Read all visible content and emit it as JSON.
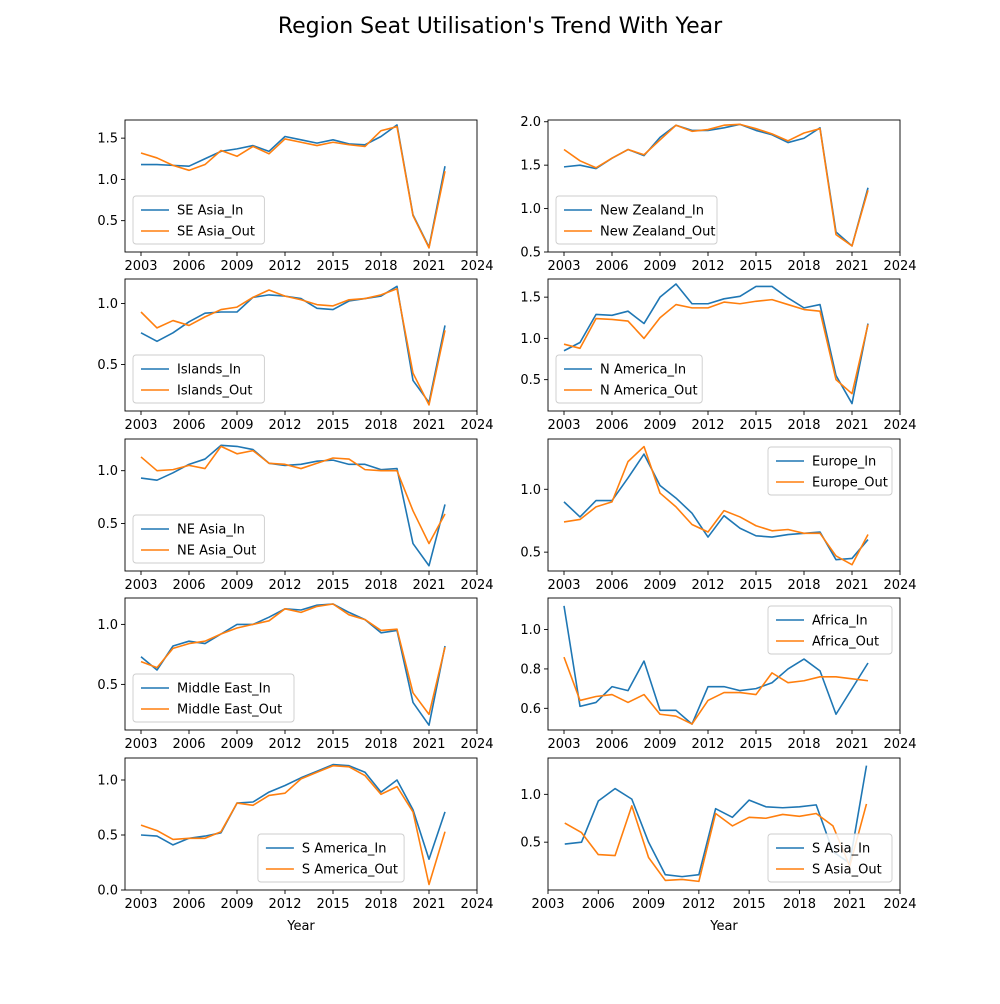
{
  "figure": {
    "title": "Region Seat Utilisation's Trend With Year",
    "colors": {
      "in": "#1f77b4",
      "out": "#ff7f0e"
    }
  },
  "chart_data": [
    {
      "type": "line",
      "xlim": [
        2002,
        2024
      ],
      "xticks": [
        2003,
        2006,
        2009,
        2012,
        2015,
        2018,
        2021,
        2024
      ],
      "ylim": [
        0.12,
        1.72
      ],
      "yticks": [
        0.5,
        1.0,
        1.5
      ],
      "legend": "lower-left",
      "xlabel": "",
      "x": [
        2003,
        2004,
        2005,
        2006,
        2007,
        2008,
        2009,
        2010,
        2011,
        2012,
        2013,
        2014,
        2015,
        2016,
        2017,
        2018,
        2019,
        2020,
        2021,
        2022
      ],
      "series": [
        {
          "name": "SE Asia_In",
          "values": [
            1.18,
            1.18,
            1.17,
            1.16,
            1.25,
            1.34,
            1.37,
            1.41,
            1.34,
            1.52,
            1.48,
            1.44,
            1.48,
            1.43,
            1.42,
            1.52,
            1.66,
            0.57,
            0.18,
            1.16
          ]
        },
        {
          "name": "SE Asia_Out",
          "values": [
            1.32,
            1.26,
            1.17,
            1.11,
            1.18,
            1.35,
            1.28,
            1.4,
            1.31,
            1.49,
            1.45,
            1.41,
            1.45,
            1.42,
            1.4,
            1.59,
            1.64,
            0.56,
            0.17,
            1.1
          ]
        }
      ]
    },
    {
      "type": "line",
      "xlim": [
        2002,
        2024
      ],
      "xticks": [
        2003,
        2006,
        2009,
        2012,
        2015,
        2018,
        2021,
        2024
      ],
      "ylim": [
        0.5,
        2.02
      ],
      "yticks": [
        0.5,
        1.0,
        1.5,
        2.0
      ],
      "legend": "lower-left",
      "xlabel": "",
      "x": [
        2003,
        2004,
        2005,
        2006,
        2007,
        2008,
        2009,
        2010,
        2011,
        2012,
        2013,
        2014,
        2015,
        2016,
        2017,
        2018,
        2019,
        2020,
        2021,
        2022
      ],
      "series": [
        {
          "name": "New Zealand_In",
          "values": [
            1.48,
            1.5,
            1.46,
            1.58,
            1.68,
            1.61,
            1.82,
            1.96,
            1.9,
            1.9,
            1.93,
            1.97,
            1.9,
            1.85,
            1.76,
            1.81,
            1.93,
            0.73,
            0.57,
            1.24
          ]
        },
        {
          "name": "New Zealand_Out",
          "values": [
            1.68,
            1.55,
            1.47,
            1.58,
            1.68,
            1.62,
            1.79,
            1.96,
            1.89,
            1.91,
            1.96,
            1.97,
            1.92,
            1.86,
            1.78,
            1.87,
            1.92,
            0.7,
            0.57,
            1.21
          ]
        }
      ]
    },
    {
      "type": "line",
      "xlim": [
        2002,
        2024
      ],
      "xticks": [
        2003,
        2006,
        2009,
        2012,
        2015,
        2018,
        2021,
        2024
      ],
      "ylim": [
        0.12,
        1.2
      ],
      "yticks": [
        0.5,
        1.0
      ],
      "legend": "lower-left",
      "xlabel": "",
      "x": [
        2003,
        2004,
        2005,
        2006,
        2007,
        2008,
        2009,
        2010,
        2011,
        2012,
        2013,
        2014,
        2015,
        2016,
        2017,
        2018,
        2019,
        2020,
        2021,
        2022
      ],
      "series": [
        {
          "name": "Islands_In",
          "values": [
            0.76,
            0.69,
            0.76,
            0.85,
            0.92,
            0.93,
            0.93,
            1.05,
            1.07,
            1.06,
            1.04,
            0.96,
            0.95,
            1.02,
            1.04,
            1.06,
            1.14,
            0.37,
            0.19,
            0.82
          ]
        },
        {
          "name": "Islands_Out",
          "values": [
            0.93,
            0.8,
            0.86,
            0.82,
            0.89,
            0.95,
            0.97,
            1.05,
            1.11,
            1.06,
            1.03,
            0.99,
            0.98,
            1.03,
            1.04,
            1.07,
            1.12,
            0.43,
            0.17,
            0.78
          ]
        }
      ]
    },
    {
      "type": "line",
      "xlim": [
        2002,
        2024
      ],
      "xticks": [
        2003,
        2006,
        2009,
        2012,
        2015,
        2018,
        2021,
        2024
      ],
      "ylim": [
        0.12,
        1.72
      ],
      "yticks": [
        0.5,
        1.0,
        1.5
      ],
      "legend": "lower-left",
      "xlabel": "",
      "x": [
        2003,
        2004,
        2005,
        2006,
        2007,
        2008,
        2009,
        2010,
        2011,
        2012,
        2013,
        2014,
        2015,
        2016,
        2017,
        2018,
        2019,
        2020,
        2021,
        2022
      ],
      "series": [
        {
          "name": "N America_In",
          "values": [
            0.85,
            0.95,
            1.29,
            1.28,
            1.33,
            1.18,
            1.5,
            1.66,
            1.42,
            1.42,
            1.48,
            1.51,
            1.63,
            1.63,
            1.49,
            1.37,
            1.41,
            0.55,
            0.21,
            1.18
          ]
        },
        {
          "name": "N America_Out",
          "values": [
            0.93,
            0.88,
            1.24,
            1.23,
            1.21,
            1.0,
            1.25,
            1.41,
            1.37,
            1.37,
            1.44,
            1.42,
            1.45,
            1.47,
            1.41,
            1.35,
            1.33,
            0.5,
            0.33,
            1.17
          ]
        }
      ]
    },
    {
      "type": "line",
      "xlim": [
        2002,
        2024
      ],
      "xticks": [
        2003,
        2006,
        2009,
        2012,
        2015,
        2018,
        2021,
        2024
      ],
      "ylim": [
        0.05,
        1.3
      ],
      "yticks": [
        0.5,
        1.0
      ],
      "legend": "lower-left",
      "xlabel": "",
      "x": [
        2003,
        2004,
        2005,
        2006,
        2007,
        2008,
        2009,
        2010,
        2011,
        2012,
        2013,
        2014,
        2015,
        2016,
        2017,
        2018,
        2019,
        2020,
        2021,
        2022
      ],
      "series": [
        {
          "name": "NE Asia_In",
          "values": [
            0.93,
            0.91,
            0.98,
            1.06,
            1.11,
            1.24,
            1.23,
            1.2,
            1.07,
            1.05,
            1.06,
            1.09,
            1.1,
            1.06,
            1.06,
            1.01,
            1.02,
            0.31,
            0.1,
            0.68
          ]
        },
        {
          "name": "NE Asia_Out",
          "values": [
            1.13,
            1.0,
            1.01,
            1.05,
            1.02,
            1.23,
            1.16,
            1.19,
            1.07,
            1.06,
            1.02,
            1.07,
            1.12,
            1.11,
            1.01,
            1.0,
            1.0,
            0.62,
            0.31,
            0.59
          ]
        }
      ]
    },
    {
      "type": "line",
      "xlim": [
        2002,
        2024
      ],
      "xticks": [
        2003,
        2006,
        2009,
        2012,
        2015,
        2018,
        2021,
        2024
      ],
      "ylim": [
        0.35,
        1.4
      ],
      "yticks": [
        0.5,
        1.0
      ],
      "legend": "top-right",
      "xlabel": "",
      "x": [
        2003,
        2004,
        2005,
        2006,
        2007,
        2008,
        2009,
        2010,
        2011,
        2012,
        2013,
        2014,
        2015,
        2016,
        2017,
        2018,
        2019,
        2020,
        2021,
        2022
      ],
      "series": [
        {
          "name": "Europe_In",
          "values": [
            0.9,
            0.78,
            0.91,
            0.91,
            1.09,
            1.28,
            1.03,
            0.93,
            0.81,
            0.62,
            0.79,
            0.69,
            0.63,
            0.62,
            0.64,
            0.65,
            0.66,
            0.44,
            0.45,
            0.6
          ]
        },
        {
          "name": "Europe_Out",
          "values": [
            0.74,
            0.76,
            0.86,
            0.9,
            1.22,
            1.34,
            0.97,
            0.86,
            0.72,
            0.66,
            0.83,
            0.78,
            0.71,
            0.67,
            0.68,
            0.65,
            0.65,
            0.47,
            0.4,
            0.64
          ]
        }
      ]
    },
    {
      "type": "line",
      "xlim": [
        2002,
        2024
      ],
      "xticks": [
        2003,
        2006,
        2009,
        2012,
        2015,
        2018,
        2021,
        2024
      ],
      "ylim": [
        0.12,
        1.22
      ],
      "yticks": [
        0.5,
        1.0
      ],
      "legend": "lower-left",
      "xlabel": "",
      "x": [
        2003,
        2004,
        2005,
        2006,
        2007,
        2008,
        2009,
        2010,
        2011,
        2012,
        2013,
        2014,
        2015,
        2016,
        2017,
        2018,
        2019,
        2020,
        2021,
        2022
      ],
      "series": [
        {
          "name": "Middle East_In",
          "values": [
            0.73,
            0.62,
            0.82,
            0.86,
            0.84,
            0.92,
            1.0,
            1.0,
            1.06,
            1.13,
            1.12,
            1.16,
            1.17,
            1.1,
            1.04,
            0.93,
            0.95,
            0.35,
            0.16,
            0.82
          ]
        },
        {
          "name": "Middle East_Out",
          "values": [
            0.69,
            0.64,
            0.8,
            0.84,
            0.86,
            0.92,
            0.97,
            1.0,
            1.03,
            1.13,
            1.1,
            1.15,
            1.17,
            1.08,
            1.04,
            0.95,
            0.96,
            0.43,
            0.25,
            0.81
          ]
        }
      ]
    },
    {
      "type": "line",
      "xlim": [
        2002,
        2024
      ],
      "xticks": [
        2003,
        2006,
        2009,
        2012,
        2015,
        2018,
        2021,
        2024
      ],
      "ylim": [
        0.49,
        1.16
      ],
      "yticks": [
        0.6,
        0.8,
        1.0
      ],
      "legend": "top-right",
      "xlabel": "",
      "x": [
        2003,
        2004,
        2005,
        2006,
        2007,
        2008,
        2009,
        2010,
        2011,
        2012,
        2013,
        2014,
        2015,
        2016,
        2017,
        2018,
        2019,
        2020,
        2021,
        2022
      ],
      "series": [
        {
          "name": "Africa_In",
          "values": [
            1.12,
            0.61,
            0.63,
            0.71,
            0.69,
            0.84,
            0.59,
            0.59,
            0.52,
            0.71,
            0.71,
            0.69,
            0.7,
            0.73,
            0.8,
            0.85,
            0.79,
            0.57,
            0.7,
            0.83
          ]
        },
        {
          "name": "Africa_Out",
          "values": [
            0.86,
            0.64,
            0.66,
            0.67,
            0.63,
            0.67,
            0.57,
            0.56,
            0.52,
            0.64,
            0.68,
            0.68,
            0.67,
            0.78,
            0.73,
            0.74,
            0.76,
            0.76,
            0.75,
            0.74
          ]
        }
      ]
    },
    {
      "type": "line",
      "xlim": [
        2002,
        2024
      ],
      "xticks": [
        2003,
        2006,
        2009,
        2012,
        2015,
        2018,
        2021,
        2024
      ],
      "ylim": [
        0.0,
        1.2
      ],
      "yticks": [
        0.0,
        0.5,
        1.0
      ],
      "legend": "bottom-center",
      "xlabel": "Year",
      "x": [
        2003,
        2004,
        2005,
        2006,
        2007,
        2008,
        2009,
        2010,
        2011,
        2012,
        2013,
        2014,
        2015,
        2016,
        2017,
        2018,
        2019,
        2020,
        2021,
        2022
      ],
      "series": [
        {
          "name": "S America_In",
          "values": [
            0.5,
            0.49,
            0.41,
            0.47,
            0.49,
            0.52,
            0.79,
            0.8,
            0.89,
            0.95,
            1.02,
            1.08,
            1.14,
            1.13,
            1.07,
            0.89,
            1.0,
            0.73,
            0.28,
            0.71
          ]
        },
        {
          "name": "S America_Out",
          "values": [
            0.59,
            0.54,
            0.46,
            0.47,
            0.47,
            0.53,
            0.79,
            0.77,
            0.86,
            0.88,
            1.01,
            1.07,
            1.13,
            1.12,
            1.04,
            0.87,
            0.94,
            0.71,
            0.05,
            0.53
          ]
        }
      ]
    },
    {
      "type": "line",
      "xlim": [
        2003,
        2024
      ],
      "xticks": [
        2003,
        2006,
        2009,
        2012,
        2015,
        2018,
        2021,
        2024
      ],
      "ylim": [
        0.0,
        1.38
      ],
      "yticks": [
        0.5,
        1.0
      ],
      "legend": "lower-right",
      "xlabel": "Year",
      "x": [
        2004,
        2005,
        2006,
        2007,
        2008,
        2009,
        2010,
        2011,
        2012,
        2013,
        2014,
        2015,
        2016,
        2017,
        2018,
        2019,
        2020,
        2021,
        2022
      ],
      "series": [
        {
          "name": "S Asia_In",
          "values": [
            0.48,
            0.5,
            0.93,
            1.06,
            0.95,
            0.5,
            0.16,
            0.14,
            0.16,
            0.85,
            0.76,
            0.94,
            0.87,
            0.86,
            0.87,
            0.89,
            0.4,
            0.28,
            1.3
          ]
        },
        {
          "name": "S Asia_Out",
          "values": [
            0.7,
            0.6,
            0.37,
            0.36,
            0.88,
            0.34,
            0.1,
            0.11,
            0.09,
            0.8,
            0.67,
            0.76,
            0.75,
            0.79,
            0.77,
            0.8,
            0.67,
            0.25,
            0.9
          ]
        }
      ]
    }
  ]
}
